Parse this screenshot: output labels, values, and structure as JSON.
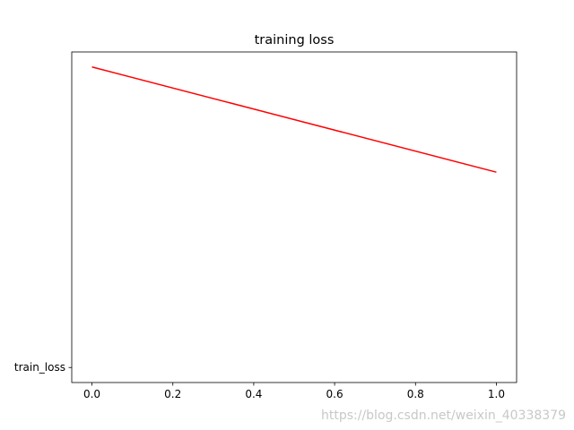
{
  "chart_data": {
    "type": "line",
    "title": "training loss",
    "x": [
      0,
      1
    ],
    "series": [
      {
        "name": "train_loss",
        "color": "#ff0000",
        "values": [
          1,
          0.65
        ]
      }
    ],
    "xlim": [
      -0.05,
      1.05
    ],
    "xticks": [
      {
        "value": 0,
        "label": "0.0"
      },
      0.2,
      0.4,
      0.6,
      0.8,
      {
        "value": 1,
        "label": "1.0"
      }
    ],
    "ylim": [
      -0.05,
      1.05
    ],
    "yticks": [
      {
        "value": 0,
        "label": "train_loss"
      }
    ],
    "grid": false
  },
  "watermark": "https://blog.csdn.net/weixin_40338379"
}
